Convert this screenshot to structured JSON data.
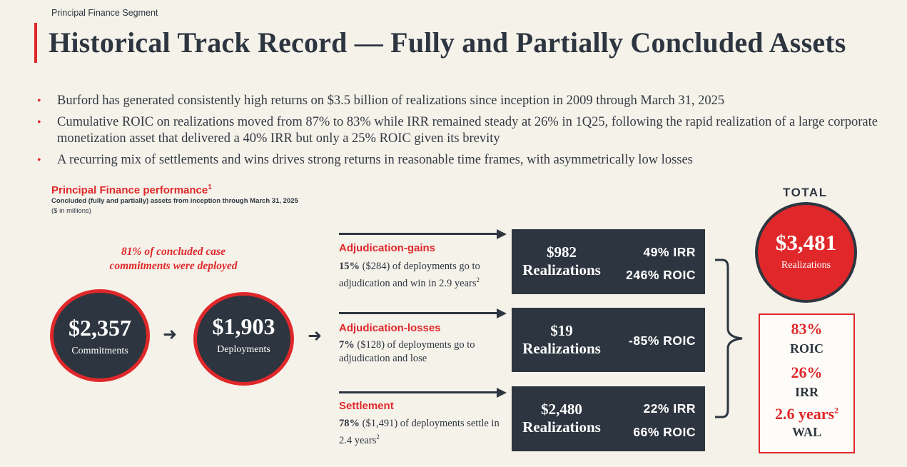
{
  "header": {
    "kicker": "Principal Finance Segment",
    "title": "Historical Track Record — Fully and Partially Concluded Assets"
  },
  "bullets": [
    "Burford has generated consistently high returns on $3.5 billion of realizations since inception in 2009 through March 31, 2025",
    "Cumulative ROIC on realizations moved from 87% to 83% while IRR remained steady at 26% in 1Q25, following the rapid realization of a large corporate monetization asset that delivered a 40% IRR but only a 25% ROIC given its brevity",
    "A recurring mix of settlements and wins drives strong returns in reasonable time frames, with asymmetrically low losses"
  ],
  "performance": {
    "title": "Principal Finance performance",
    "footnote": "1",
    "subtitle": "Concluded (fully and partially) assets from inception through March 31, 2025",
    "units": "($ in millions)"
  },
  "deployed_note": {
    "line1": "81% of concluded case",
    "line2": "commitments were deployed"
  },
  "commitments": {
    "value": "$2,357",
    "label": "Commitments"
  },
  "deployments": {
    "value": "$1,903",
    "label": "Deployments"
  },
  "flow_arrow": "➜",
  "outcomes": [
    {
      "title": "Adjudication-gains",
      "pct": "15%",
      "desc": "($284) of deployments go to adjudication and win in 2.9 years",
      "footnote": "2",
      "amount": "$982",
      "realizations_label": "Realizations",
      "irr": "49% IRR",
      "roic": "246% ROIC"
    },
    {
      "title": "Adjudication-losses",
      "pct": "7%",
      "desc": "($128) of deployments go to adjudication and lose",
      "footnote": "",
      "amount": "$19",
      "realizations_label": "Realizations",
      "irr": "",
      "roic": "-85% ROIC"
    },
    {
      "title": "Settlement",
      "pct": "78%",
      "desc": "($1,491) of deployments settle in 2.4 years",
      "footnote": "2",
      "amount": "$2,480",
      "realizations_label": "Realizations",
      "irr": "22% IRR",
      "roic": "66% ROIC"
    }
  ],
  "total": {
    "label": "TOTAL",
    "value": "$3,481",
    "value_label": "Realizations",
    "roic_value": "83%",
    "roic_label": "ROIC",
    "irr_value": "26%",
    "irr_label": "IRR",
    "wal_value": "2.6 years",
    "wal_footnote": "2",
    "wal_label": "WAL"
  },
  "colors": {
    "accent_red": "#e0282a",
    "navy": "#2d3640",
    "background": "#f5f2ea"
  }
}
